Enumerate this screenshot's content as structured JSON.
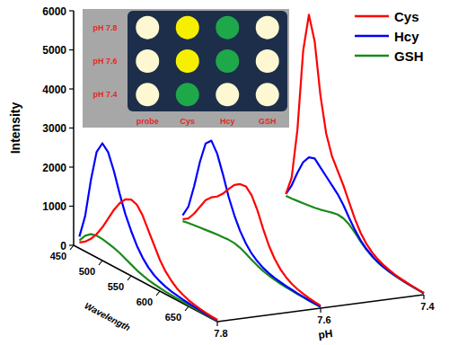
{
  "chart_data": {
    "type": "waterfall",
    "xlabel": "Wavelength",
    "ylabel": "Intensity",
    "zlabel": "pH",
    "x": [
      460,
      470,
      480,
      490,
      500,
      510,
      520,
      530,
      540,
      550,
      560,
      570,
      580,
      590,
      600,
      610,
      620,
      630,
      640,
      650,
      660,
      670,
      680,
      690,
      700
    ],
    "z": [
      7.8,
      7.6,
      7.4
    ],
    "xlim": [
      450,
      700
    ],
    "xticks": [
      450,
      500,
      550,
      600,
      650
    ],
    "ylim": [
      0,
      6000
    ],
    "yticks": [
      0,
      1000,
      2000,
      3000,
      4000,
      5000,
      6000
    ],
    "zlim": [
      7.8,
      7.4
    ],
    "zticks": [
      7.8,
      7.6,
      7.4
    ],
    "grid": false,
    "legend": "top-right",
    "series": [
      {
        "name": "Cys",
        "color": "#ff0000",
        "values": [
          [
            150,
            250,
            400,
            600,
            850,
            1150,
            1450,
            1700,
            1880,
            1950,
            1900,
            1700,
            1400,
            1100,
            800,
            580,
            420,
            300,
            220,
            160,
            120,
            90,
            70,
            55,
            45
          ],
          [
            400,
            500,
            700,
            950,
            1200,
            1350,
            1450,
            1600,
            1800,
            1980,
            2080,
            2100,
            1950,
            1650,
            1250,
            900,
            640,
            450,
            320,
            230,
            170,
            130,
            100,
            80,
            65
          ],
          [
            700,
            1200,
            2500,
            4600,
            5600,
            5000,
            3700,
            2800,
            2300,
            2000,
            1700,
            1350,
            1000,
            720,
            520,
            380,
            280,
            210,
            160,
            120,
            95,
            75,
            60,
            50,
            42
          ]
        ]
      },
      {
        "name": "Hcy",
        "color": "#0000ff",
        "values": [
          [
            300,
            900,
            1900,
            2700,
            3000,
            2850,
            2450,
            1950,
            1500,
            1150,
            850,
            620,
            450,
            330,
            250,
            190,
            150,
            120,
            95,
            80,
            65,
            55,
            45,
            40,
            35
          ],
          [
            500,
            800,
            1400,
            2100,
            2650,
            2800,
            2550,
            2100,
            1600,
            1200,
            880,
            640,
            460,
            340,
            250,
            190,
            150,
            120,
            95,
            80,
            65,
            55,
            45,
            40,
            35
          ],
          [
            700,
            1000,
            1400,
            1750,
            1950,
            2000,
            1850,
            1700,
            1550,
            1400,
            1200,
            950,
            720,
            530,
            390,
            290,
            210,
            160,
            125,
            100,
            80,
            65,
            55,
            45,
            40
          ]
        ]
      },
      {
        "name": "GSH",
        "color": "#1a8a1a",
        "values": [
          [
            200,
            400,
            520,
            560,
            550,
            520,
            480,
            430,
            360,
            290,
            220,
            170,
            130,
            100,
            80,
            65,
            55,
            45,
            40,
            35,
            30,
            28,
            25,
            22,
            20
          ],
          [
            350,
            380,
            400,
            420,
            440,
            460,
            480,
            490,
            500,
            490,
            450,
            380,
            300,
            230,
            170,
            130,
            100,
            80,
            65,
            55,
            45,
            40,
            35,
            30,
            28
          ],
          [
            650,
            660,
            680,
            700,
            720,
            740,
            770,
            810,
            850,
            880,
            860,
            780,
            650,
            500,
            370,
            270,
            200,
            150,
            115,
            90,
            72,
            60,
            50,
            42,
            36
          ]
        ]
      }
    ],
    "inset": {
      "rows": [
        "pH 7.8",
        "pH 7.6",
        "pH 7.4"
      ],
      "columns": [
        "probe",
        "Cys",
        "Hcy",
        "GSH"
      ],
      "colors": [
        [
          "#fdf8d2",
          "#f6f000",
          "#1ea84a",
          "#fdf8d2"
        ],
        [
          "#fdf8d2",
          "#f6f000",
          "#1ea84a",
          "#fdf8d2"
        ],
        [
          "#fdf8d2",
          "#1ea84a",
          "#fdf8d2",
          "#fdf8d2"
        ]
      ]
    }
  }
}
